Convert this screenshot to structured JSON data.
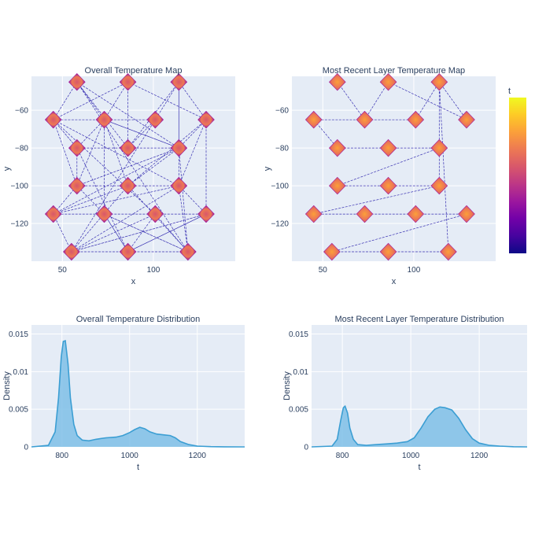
{
  "colors": {
    "plot_bg": "#e5ecf6",
    "grid": "#ffffff",
    "text": "#2a3f5f",
    "path_line": "#1a0fa6",
    "kde_line": "#3b9ed3",
    "kde_fill": "#7fbfe6",
    "colorscale": [
      "#0d0887",
      "#46039f",
      "#7201a8",
      "#9c179e",
      "#bd3786",
      "#d8576b",
      "#ed7953",
      "#fb9f3a",
      "#fdca26",
      "#f0f921"
    ]
  },
  "colorbar": {
    "title": "t"
  },
  "chart_data": [
    {
      "type": "scatter",
      "title": "Overall Temperature Map",
      "xlabel": "x",
      "ylabel": "y",
      "xlim": [
        33,
        145
      ],
      "ylim": [
        -140,
        -42
      ],
      "xticks": [
        {
          "value": 50,
          "label": "50"
        },
        {
          "value": 100,
          "label": "100"
        }
      ],
      "yticks": [
        {
          "value": -60,
          "label": "−60"
        },
        {
          "value": -80,
          "label": "−80"
        },
        {
          "value": -100,
          "label": "−100"
        },
        {
          "value": -120,
          "label": "−120"
        }
      ],
      "islands": [
        {
          "x": 58,
          "y": -45
        },
        {
          "x": 86,
          "y": -45
        },
        {
          "x": 114,
          "y": -45
        },
        {
          "x": 45,
          "y": -65
        },
        {
          "x": 73,
          "y": -65
        },
        {
          "x": 101,
          "y": -65
        },
        {
          "x": 129,
          "y": -65
        },
        {
          "x": 58,
          "y": -80
        },
        {
          "x": 86,
          "y": -80
        },
        {
          "x": 114,
          "y": -80
        },
        {
          "x": 58,
          "y": -100
        },
        {
          "x": 86,
          "y": -100
        },
        {
          "x": 114,
          "y": -100
        },
        {
          "x": 45,
          "y": -115
        },
        {
          "x": 73,
          "y": -115
        },
        {
          "x": 101,
          "y": -115
        },
        {
          "x": 129,
          "y": -115
        },
        {
          "x": 55,
          "y": -135
        },
        {
          "x": 86,
          "y": -135
        },
        {
          "x": 119,
          "y": -135
        }
      ],
      "island_half_width": 4.5,
      "island_half_height": 4.5,
      "path": [
        0,
        4,
        1,
        6,
        2,
        5,
        3,
        7,
        8,
        9,
        10,
        11,
        12,
        13,
        14,
        15,
        16,
        17,
        18,
        19,
        0,
        8,
        2,
        9,
        4,
        11,
        6,
        12,
        3,
        10,
        13,
        17,
        15,
        19,
        14,
        18,
        16,
        17,
        5,
        8,
        1,
        3,
        7,
        10,
        9,
        13,
        11,
        19,
        12,
        16,
        18,
        14,
        4,
        9,
        2,
        12,
        17,
        16,
        6,
        9,
        0,
        3,
        15,
        18,
        7,
        4,
        10,
        14,
        19,
        9,
        11,
        17
      ]
    },
    {
      "type": "scatter",
      "title": "Most Recent Layer Temperature Map",
      "xlabel": "x",
      "ylabel": "y",
      "xlim": [
        33,
        145
      ],
      "ylim": [
        -140,
        -42
      ],
      "xticks": [
        {
          "value": 50,
          "label": "50"
        },
        {
          "value": 100,
          "label": "100"
        }
      ],
      "yticks": [
        {
          "value": -60,
          "label": "−60"
        },
        {
          "value": -80,
          "label": "−80"
        },
        {
          "value": -100,
          "label": "−100"
        },
        {
          "value": -120,
          "label": "−120"
        }
      ],
      "islands": [
        {
          "x": 58,
          "y": -45
        },
        {
          "x": 86,
          "y": -45
        },
        {
          "x": 114,
          "y": -45
        },
        {
          "x": 45,
          "y": -65
        },
        {
          "x": 73,
          "y": -65
        },
        {
          "x": 101,
          "y": -65
        },
        {
          "x": 129,
          "y": -65
        },
        {
          "x": 58,
          "y": -80
        },
        {
          "x": 86,
          "y": -80
        },
        {
          "x": 114,
          "y": -80
        },
        {
          "x": 58,
          "y": -100
        },
        {
          "x": 86,
          "y": -100
        },
        {
          "x": 114,
          "y": -100
        },
        {
          "x": 45,
          "y": -115
        },
        {
          "x": 73,
          "y": -115
        },
        {
          "x": 101,
          "y": -115
        },
        {
          "x": 129,
          "y": -115
        },
        {
          "x": 55,
          "y": -135
        },
        {
          "x": 86,
          "y": -135
        },
        {
          "x": 119,
          "y": -135
        }
      ],
      "island_half_width": 4.5,
      "island_half_height": 4.5,
      "path": [
        0,
        4,
        1,
        6,
        2,
        5,
        3,
        7,
        8,
        9,
        10,
        11,
        12,
        13,
        14,
        15,
        16,
        17,
        18,
        19,
        2,
        9,
        12
      ]
    },
    {
      "type": "area",
      "title": "Overall Temperature Distribution",
      "xlabel": "t",
      "ylabel": "Density",
      "xlim": [
        710,
        1340
      ],
      "ylim": [
        0,
        0.0162
      ],
      "xticks": [
        {
          "value": 800,
          "label": "800"
        },
        {
          "value": 1000,
          "label": "1000"
        },
        {
          "value": 1200,
          "label": "1200"
        }
      ],
      "yticks": [
        {
          "value": 0,
          "label": "0"
        },
        {
          "value": 0.005,
          "label": "0.005"
        },
        {
          "value": 0.01,
          "label": "0.01"
        },
        {
          "value": 0.015,
          "label": "0.015"
        }
      ],
      "x": [
        700,
        760,
        780,
        790,
        798,
        804,
        810,
        818,
        825,
        835,
        845,
        860,
        880,
        900,
        930,
        960,
        980,
        1000,
        1015,
        1030,
        1045,
        1060,
        1080,
        1100,
        1120,
        1135,
        1150,
        1175,
        1200,
        1240,
        1280,
        1340
      ],
      "y": [
        0,
        0.0002,
        0.002,
        0.0065,
        0.012,
        0.014,
        0.0141,
        0.011,
        0.0065,
        0.003,
        0.0015,
        0.0009,
        0.0008,
        0.001,
        0.0012,
        0.0013,
        0.0015,
        0.0019,
        0.0023,
        0.0026,
        0.0024,
        0.002,
        0.0017,
        0.0016,
        0.0015,
        0.0012,
        0.0007,
        0.0003,
        0.0001,
        3e-05,
        1e-05,
        0
      ]
    },
    {
      "type": "area",
      "title": "Most Recent Layer Temperature Distribution",
      "xlabel": "t",
      "ylabel": "Density",
      "xlim": [
        710,
        1340
      ],
      "ylim": [
        0,
        0.0162
      ],
      "xticks": [
        {
          "value": 800,
          "label": "800"
        },
        {
          "value": 1000,
          "label": "1000"
        },
        {
          "value": 1200,
          "label": "1200"
        }
      ],
      "yticks": [
        {
          "value": 0,
          "label": "0"
        },
        {
          "value": 0.005,
          "label": "0.005"
        },
        {
          "value": 0.01,
          "label": "0.01"
        },
        {
          "value": 0.015,
          "label": "0.015"
        }
      ],
      "x": [
        700,
        770,
        785,
        795,
        803,
        808,
        815,
        822,
        832,
        845,
        870,
        900,
        930,
        960,
        990,
        1010,
        1030,
        1050,
        1070,
        1085,
        1100,
        1120,
        1140,
        1160,
        1180,
        1200,
        1230,
        1260,
        1300,
        1340
      ],
      "y": [
        0,
        0.0001,
        0.001,
        0.0035,
        0.0052,
        0.0054,
        0.0045,
        0.0025,
        0.001,
        0.0003,
        0.0002,
        0.0003,
        0.0004,
        0.0005,
        0.0007,
        0.0012,
        0.0025,
        0.004,
        0.005,
        0.0053,
        0.0052,
        0.0049,
        0.0038,
        0.0023,
        0.0011,
        0.0005,
        0.0002,
        0.0001,
        2e-05,
        0
      ]
    }
  ]
}
